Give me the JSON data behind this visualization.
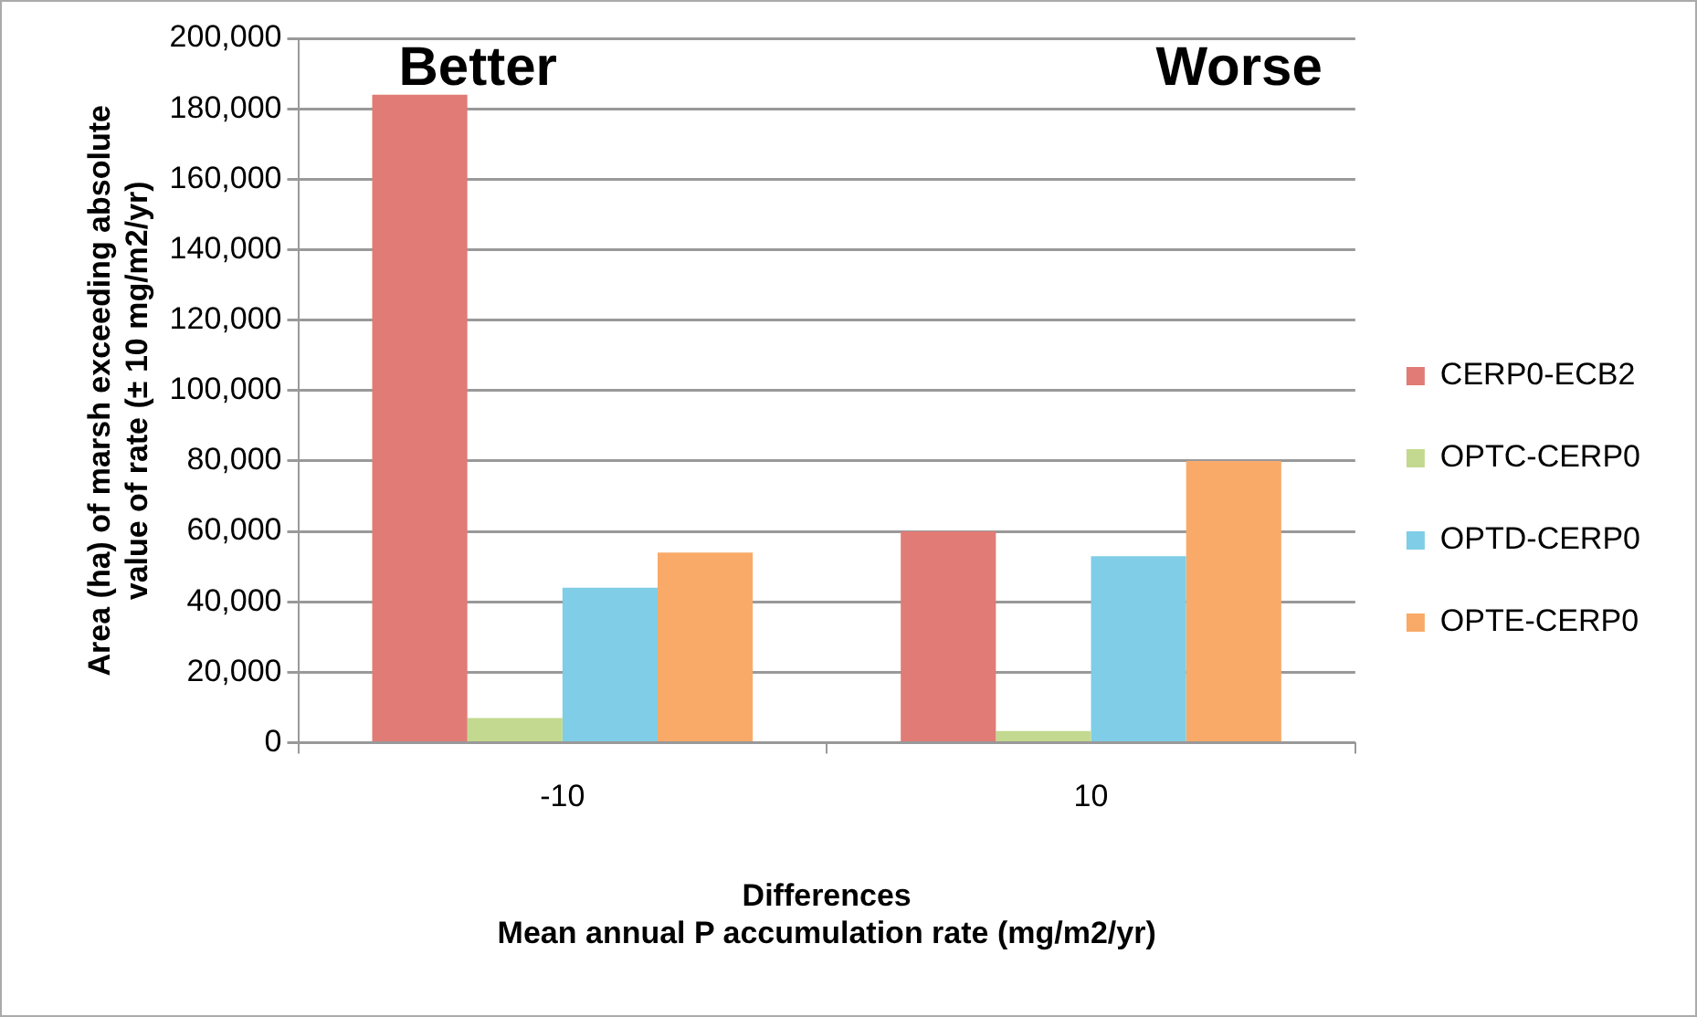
{
  "chart_data": {
    "type": "bar",
    "xlabel": "Differences\nMean annual P accumulation rate (mg/m2/yr)",
    "ylabel": "Area (ha) of marsh exceeding absolute\nvalue of rate (± 10 mg/m2/yr)",
    "categories": [
      "-10",
      "10"
    ],
    "series": [
      {
        "name": "CERP0-ECB2",
        "color": "#e07b76",
        "values": [
          184000,
          60000
        ]
      },
      {
        "name": "OPTC-CERP0",
        "color": "#c3d98f",
        "values": [
          7000,
          3300
        ]
      },
      {
        "name": "OPTD-CERP0",
        "color": "#7fcde6",
        "values": [
          44000,
          53000
        ]
      },
      {
        "name": "OPTE-CERP0",
        "color": "#f9aa68",
        "values": [
          54000,
          80000
        ]
      }
    ],
    "annotations": [
      "Better",
      "Worse"
    ],
    "ylim": [
      0,
      200000
    ],
    "yticks": [
      0,
      {
        "value": 20000,
        "label": "20,000"
      },
      {
        "value": 40000,
        "label": "40,000"
      },
      {
        "value": 60000,
        "label": "60,000"
      },
      {
        "value": 80000,
        "label": "80,000"
      },
      {
        "value": 100000,
        "label": "100,000"
      },
      {
        "value": 120000,
        "label": "120,000"
      },
      {
        "value": 140000,
        "label": "140,000"
      },
      {
        "value": 160000,
        "label": "160,000"
      },
      {
        "value": 180000,
        "label": "180,000"
      },
      {
        "value": 200000,
        "label": "200,000"
      }
    ],
    "grid": "y",
    "legend": "right"
  }
}
